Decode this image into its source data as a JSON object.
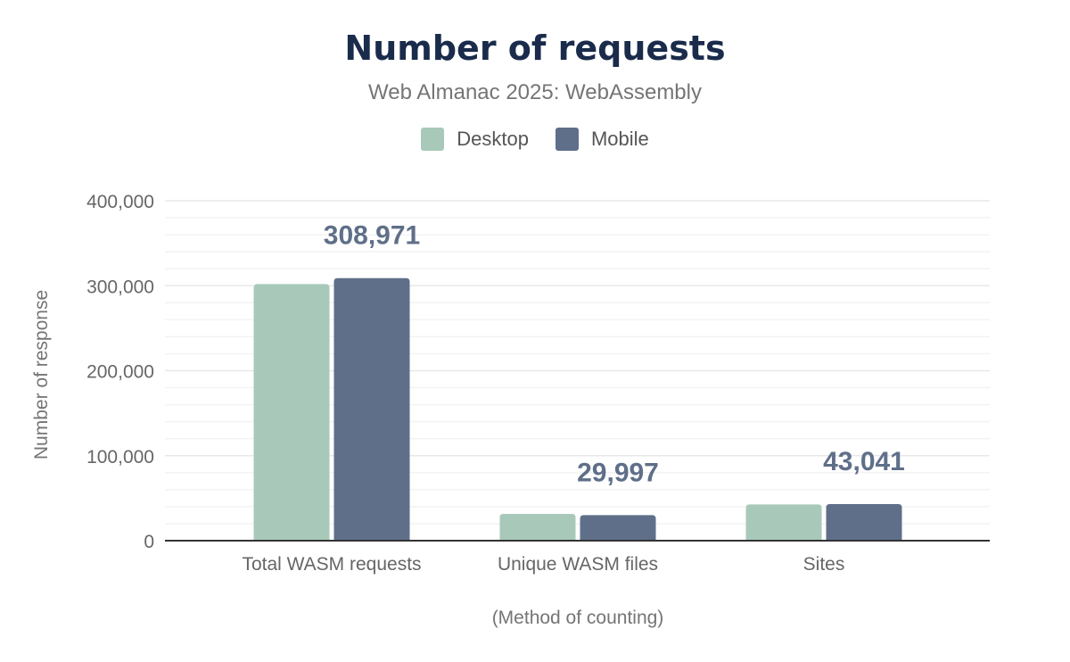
{
  "chart_data": {
    "type": "bar",
    "title": "Number of requests",
    "subtitle": "Web Almanac 2025: WebAssembly",
    "xlabel": "(Method of counting)",
    "ylabel": "Number of response",
    "categories": [
      "Total WASM requests",
      "Unique WASM files",
      "Sites"
    ],
    "series": [
      {
        "name": "Desktop",
        "color": "#a8c9b9",
        "values": [
          302000,
          31500,
          42700
        ]
      },
      {
        "name": "Mobile",
        "color": "#5f6f89",
        "values": [
          308971,
          29997,
          43041
        ]
      }
    ],
    "data_labels": [
      "308,971",
      "29,997",
      "43,041"
    ],
    "ylim": [
      0,
      400000
    ],
    "yticks": [
      0,
      100000,
      200000,
      300000,
      400000
    ],
    "ytick_labels": [
      "0",
      "100,000",
      "200,000",
      "300,000",
      "400,000"
    ],
    "grid": true,
    "legend": "top"
  }
}
